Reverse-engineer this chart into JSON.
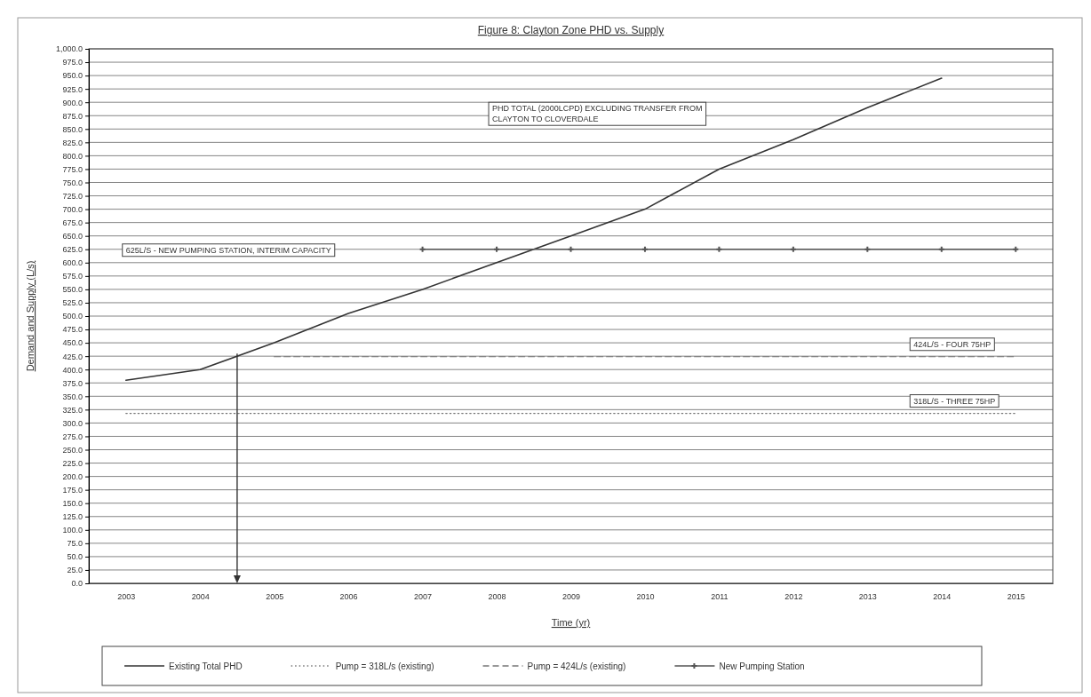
{
  "chart_data": {
    "type": "line",
    "title": "Figure 8: Clayton Zone PHD vs. Supply",
    "xlabel": "Time (yr)",
    "ylabel": "Demand and Supply (L/s)",
    "categories": [
      "2003",
      "2004",
      "2005",
      "2006",
      "2007",
      "2008",
      "2009",
      "2010",
      "2011",
      "2012",
      "2013",
      "2014",
      "2015"
    ],
    "series": [
      {
        "name": "Existing Total PHD",
        "color": "#333333",
        "line_style": "solid",
        "marker": "none",
        "values": [
          380,
          400,
          450,
          505,
          550,
          600,
          650,
          700,
          775,
          830,
          890,
          945,
          null
        ]
      },
      {
        "name": "Pump = 318L/s (existing)",
        "color": "#777777",
        "line_style": "dotted",
        "marker": "none",
        "values": [
          318,
          318,
          318,
          318,
          318,
          318,
          318,
          318,
          318,
          318,
          318,
          318,
          318
        ]
      },
      {
        "name": "Pump = 424L/s (existing)",
        "color": "#777777",
        "line_style": "dashed",
        "marker": "none",
        "values": [
          null,
          null,
          424,
          424,
          424,
          424,
          424,
          424,
          424,
          424,
          424,
          424,
          424
        ]
      },
      {
        "name": "New Pumping Station",
        "color": "#555555",
        "line_style": "solid",
        "marker": "cross",
        "values": [
          null,
          null,
          null,
          null,
          625,
          625,
          625,
          625,
          625,
          625,
          625,
          625,
          625
        ]
      }
    ],
    "ylim": [
      0,
      1000
    ],
    "yticks": [
      {
        "value": 0,
        "label": "0.0"
      },
      {
        "value": 25,
        "label": "25.0"
      },
      {
        "value": 50,
        "label": "50.0"
      },
      {
        "value": 75,
        "label": "75.0"
      },
      {
        "value": 100,
        "label": "100.0"
      },
      {
        "value": 125,
        "label": "125.0"
      },
      {
        "value": 150,
        "label": "150.0"
      },
      {
        "value": 175,
        "label": "175.0"
      },
      {
        "value": 200,
        "label": "200.0"
      },
      {
        "value": 225,
        "label": "225.0"
      },
      {
        "value": 250,
        "label": "250.0"
      },
      {
        "value": 275,
        "label": "275.0"
      },
      {
        "value": 300,
        "label": "300.0"
      },
      {
        "value": 325,
        "label": "325.0"
      },
      {
        "value": 350,
        "label": "350.0"
      },
      {
        "value": 375,
        "label": "375.0"
      },
      {
        "value": 400,
        "label": "400.0"
      },
      {
        "value": 425,
        "label": "425.0"
      },
      {
        "value": 450,
        "label": "450.0"
      },
      {
        "value": 475,
        "label": "475.0"
      },
      {
        "value": 500,
        "label": "500.0"
      },
      {
        "value": 525,
        "label": "525.0"
      },
      {
        "value": 550,
        "label": "550.0"
      },
      {
        "value": 575,
        "label": "575.0"
      },
      {
        "value": 600,
        "label": "600.0"
      },
      {
        "value": 625,
        "label": "625.0"
      },
      {
        "value": 650,
        "label": "650.0"
      },
      {
        "value": 675,
        "label": "675.0"
      },
      {
        "value": 700,
        "label": "700.0"
      },
      {
        "value": 725,
        "label": "725.0"
      },
      {
        "value": 750,
        "label": "750.0"
      },
      {
        "value": 775,
        "label": "775.0"
      },
      {
        "value": 800,
        "label": "800.0"
      },
      {
        "value": 825,
        "label": "825.0"
      },
      {
        "value": 850,
        "label": "850.0"
      },
      {
        "value": 875,
        "label": "875.0"
      },
      {
        "value": 900,
        "label": "900.0"
      },
      {
        "value": 925,
        "label": "925.0"
      },
      {
        "value": 950,
        "label": "950.0"
      },
      {
        "value": 975,
        "label": "975.0"
      },
      {
        "value": 1000,
        "label": "1,000.0"
      }
    ],
    "grid": "y",
    "legend": "bottom",
    "annotations": [
      "625L/S - NEW PUMPING STATION, INTERIM CAPACITY",
      "PHD TOTAL (2000LCPD) EXCLUDING TRANSFER FROM CLAYTON TO CLOVERDALE",
      "424L/S - FOUR 75HP",
      "318L/S - THREE 75HP"
    ]
  }
}
